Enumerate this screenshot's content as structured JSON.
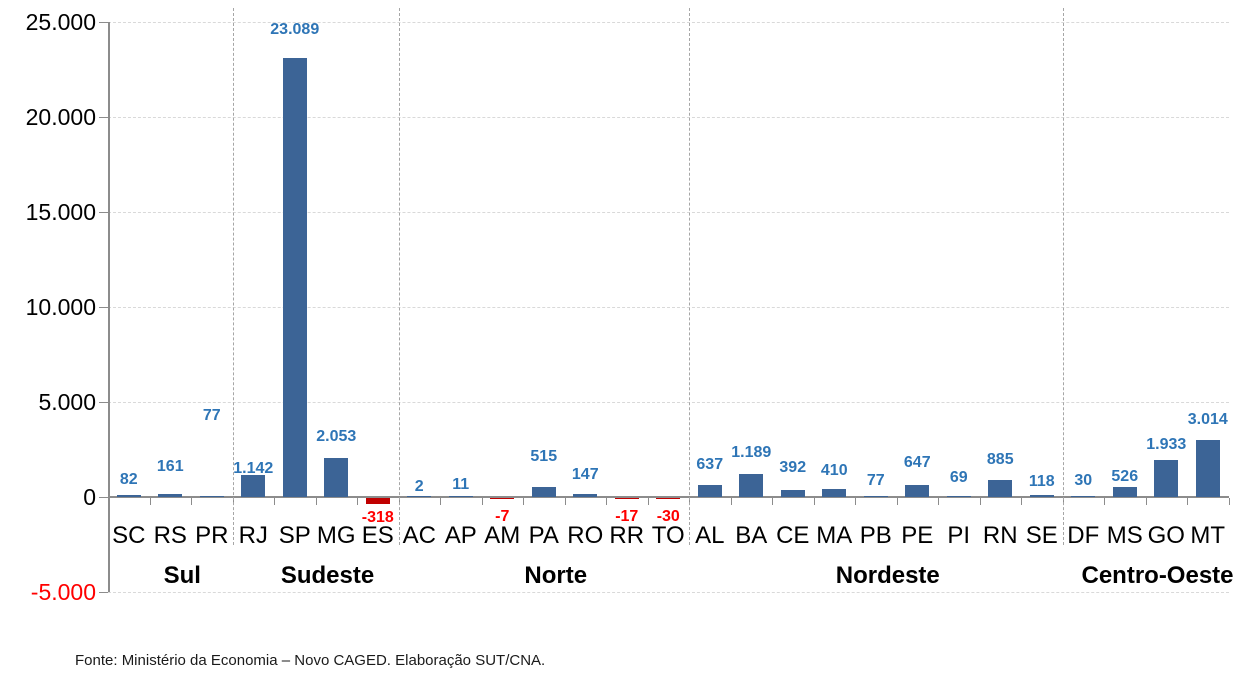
{
  "chart_data": {
    "type": "bar",
    "title": "",
    "xlabel": "",
    "ylabel": "",
    "ylim": [
      -5000,
      25000
    ],
    "ytick_interval": 5000,
    "grid": true,
    "legend": false,
    "yticks": [
      {
        "label": "25.000",
        "value": 25000
      },
      {
        "label": "20.000",
        "value": 20000
      },
      {
        "label": "15.000",
        "value": 15000
      },
      {
        "label": "10.000",
        "value": 10000
      },
      {
        "label": "5.000",
        "value": 5000
      },
      {
        "label": "0",
        "value": 0
      },
      {
        "label": "-5.000",
        "value": -5000,
        "negative": true
      }
    ],
    "regions": [
      {
        "name": "Sul",
        "states": [
          {
            "label": "SC",
            "value": 82,
            "display": "82"
          },
          {
            "label": "RS",
            "value": 161,
            "display": "161",
            "label_gap": 17
          },
          {
            "label": "PR",
            "value": 77,
            "display": "77",
            "label_gap": 70
          }
        ]
      },
      {
        "name": "Sudeste",
        "states": [
          {
            "label": "RJ",
            "value": 1142,
            "display": "1.142",
            "label_gap": -4
          },
          {
            "label": "SP",
            "value": 23089,
            "display": "23.089",
            "label_gap": 18
          },
          {
            "label": "MG",
            "value": 2053,
            "display": "2.053",
            "label_gap": 11
          },
          {
            "label": "ES",
            "value": -318,
            "display": "-318",
            "label_gap": 5
          }
        ]
      },
      {
        "name": "Norte",
        "states": [
          {
            "label": "AC",
            "value": 2,
            "display": "2",
            "label_gap": -1
          },
          {
            "label": "AP",
            "value": 11,
            "display": "11",
            "label_gap": 1
          },
          {
            "label": "AM",
            "value": -7,
            "display": "-7"
          },
          {
            "label": "PA",
            "value": 515,
            "display": "515",
            "label_gap": 20
          },
          {
            "label": "RO",
            "value": 147,
            "display": "147",
            "label_gap": 9
          },
          {
            "label": "RR",
            "value": -17,
            "display": "-17"
          },
          {
            "label": "TO",
            "value": -30,
            "display": "-30"
          }
        ]
      },
      {
        "name": "Nordeste",
        "states": [
          {
            "label": "AL",
            "value": 637,
            "display": "637",
            "label_gap": 10
          },
          {
            "label": "BA",
            "value": 1189,
            "display": "1.189",
            "label_gap": 11
          },
          {
            "label": "CE",
            "value": 392,
            "display": "392",
            "label_gap": 12
          },
          {
            "label": "MA",
            "value": 410,
            "display": "410",
            "label_gap": 8
          },
          {
            "label": "PB",
            "value": 77,
            "display": "77"
          },
          {
            "label": "PE",
            "value": 647,
            "display": "647",
            "label_gap": 12
          },
          {
            "label": "PI",
            "value": 69,
            "display": "69",
            "label_gap": 8
          },
          {
            "label": "RN",
            "value": 885,
            "display": "885",
            "label_gap": 10
          },
          {
            "label": "SE",
            "value": 118,
            "display": "118",
            "label_gap": 3
          }
        ]
      },
      {
        "name": "Centro-Oeste",
        "states": [
          {
            "label": "DF",
            "value": 30,
            "display": "30"
          },
          {
            "label": "MS",
            "value": 526,
            "display": "526",
            "label_gap": 0
          },
          {
            "label": "GO",
            "value": 1933,
            "display": "1.933"
          },
          {
            "label": "MT",
            "value": 3014,
            "display": "3.014",
            "label_gap": 10
          }
        ]
      }
    ]
  },
  "colors": {
    "positive_bar": "#3C6496",
    "negative_bar": "#C00000",
    "positive_label": "#2E75B6",
    "negative_label": "#FF0000",
    "axis_line": "#8C8C8C",
    "gridline": "#D9D9D9",
    "region_separator": "#A6A6A6",
    "axis_label": "#000000",
    "negative_axis_label": "#FF0000"
  },
  "footer": {
    "source_text": "Fonte: Ministério da Economia – Novo CAGED. Elaboração SUT/CNA."
  }
}
